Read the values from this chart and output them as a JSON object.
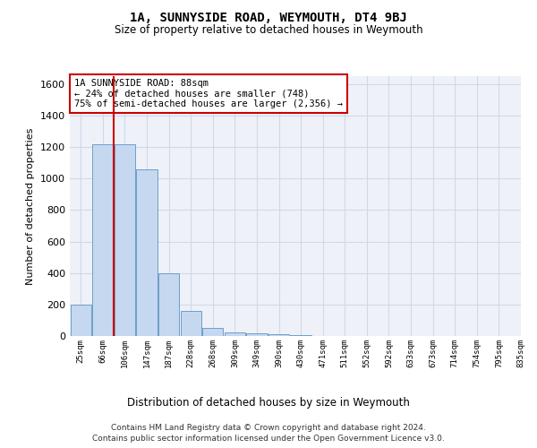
{
  "title": "1A, SUNNYSIDE ROAD, WEYMOUTH, DT4 9BJ",
  "subtitle": "Size of property relative to detached houses in Weymouth",
  "xlabel": "Distribution of detached houses by size in Weymouth",
  "ylabel": "Number of detached properties",
  "bar_values": [
    200,
    1220,
    1220,
    1060,
    400,
    160,
    50,
    25,
    15,
    10,
    5,
    2,
    0,
    0,
    0,
    0,
    0,
    0,
    0,
    0
  ],
  "bin_labels": [
    "25sqm",
    "66sqm",
    "106sqm",
    "147sqm",
    "187sqm",
    "228sqm",
    "268sqm",
    "309sqm",
    "349sqm",
    "390sqm",
    "430sqm",
    "471sqm",
    "511sqm",
    "552sqm",
    "592sqm",
    "633sqm",
    "673sqm",
    "714sqm",
    "754sqm",
    "795sqm",
    "835sqm"
  ],
  "bar_color": "#c5d8f0",
  "bar_edge_color": "#6b9fc8",
  "red_line_x": 1.5,
  "annotation_text": "1A SUNNYSIDE ROAD: 88sqm\n← 24% of detached houses are smaller (748)\n75% of semi-detached houses are larger (2,356) →",
  "annotation_box_color": "#ffffff",
  "annotation_box_edge": "#cc0000",
  "red_line_color": "#cc0000",
  "ylim": [
    0,
    1650
  ],
  "yticks": [
    0,
    200,
    400,
    600,
    800,
    1000,
    1200,
    1400,
    1600
  ],
  "grid_color": "#d0d8e8",
  "background_color": "#eef2f8",
  "footer_line1": "Contains HM Land Registry data © Crown copyright and database right 2024.",
  "footer_line2": "Contains public sector information licensed under the Open Government Licence v3.0."
}
